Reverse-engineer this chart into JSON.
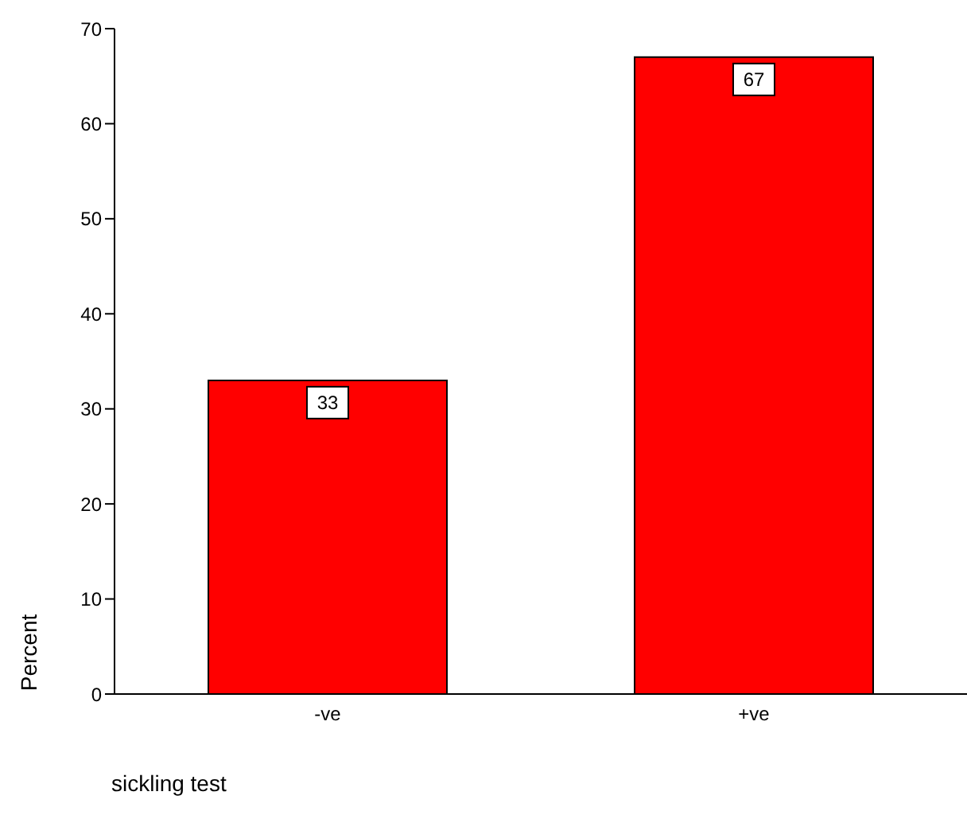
{
  "chart_data": {
    "type": "bar",
    "xlabel": "sickling test",
    "ylabel": "Percent",
    "categories": [
      "-ve",
      "+ve"
    ],
    "values": [
      33,
      67
    ],
    "color": "#ff0000",
    "ylim": [
      0,
      70
    ],
    "yticks": [
      0,
      10,
      20,
      30,
      40,
      50,
      60,
      70
    ],
    "data_labels": true,
    "grid": false,
    "legend": false
  }
}
